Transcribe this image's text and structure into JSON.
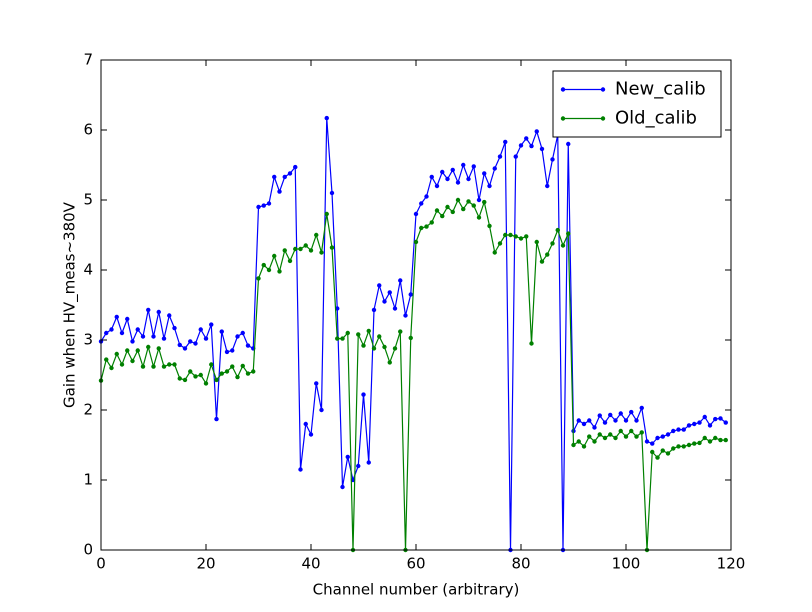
{
  "chart_data": {
    "type": "line",
    "xlabel": "Channel number (arbitrary)",
    "ylabel": "Gain when HV_meas~380V",
    "x": [
      0,
      1,
      2,
      3,
      4,
      5,
      6,
      7,
      8,
      9,
      10,
      11,
      12,
      13,
      14,
      15,
      16,
      17,
      18,
      19,
      20,
      21,
      22,
      23,
      24,
      25,
      26,
      27,
      28,
      29,
      30,
      31,
      32,
      33,
      34,
      35,
      36,
      37,
      38,
      39,
      40,
      41,
      42,
      43,
      44,
      45,
      46,
      47,
      48,
      49,
      50,
      51,
      52,
      53,
      54,
      55,
      56,
      57,
      58,
      59,
      60,
      61,
      62,
      63,
      64,
      65,
      66,
      67,
      68,
      69,
      70,
      71,
      72,
      73,
      74,
      75,
      76,
      77,
      78,
      79,
      80,
      81,
      82,
      83,
      84,
      85,
      86,
      87,
      88,
      89,
      90,
      91,
      92,
      93,
      94,
      95,
      96,
      97,
      98,
      99,
      100,
      101,
      102,
      103,
      104,
      105,
      106,
      107,
      108,
      109,
      110,
      111,
      112,
      113,
      114,
      115,
      116,
      117,
      118,
      119
    ],
    "series": [
      {
        "name": "New_calib",
        "color": "#0000ff",
        "values": [
          2.98,
          3.1,
          3.15,
          3.33,
          3.1,
          3.3,
          2.98,
          3.15,
          3.05,
          3.43,
          3.05,
          3.4,
          3.02,
          3.35,
          3.17,
          2.93,
          2.88,
          2.98,
          2.95,
          3.15,
          3.02,
          3.22,
          1.87,
          3.12,
          2.83,
          2.85,
          3.05,
          3.1,
          2.92,
          2.88,
          4.9,
          4.92,
          4.95,
          5.33,
          5.12,
          5.33,
          5.38,
          5.47,
          1.15,
          1.8,
          1.65,
          2.38,
          2.0,
          6.17,
          5.1,
          3.45,
          0.9,
          1.33,
          1.0,
          1.2,
          2.22,
          1.25,
          3.43,
          3.78,
          3.55,
          3.68,
          3.45,
          3.85,
          3.35,
          3.65,
          4.8,
          4.95,
          5.05,
          5.33,
          5.2,
          5.4,
          5.3,
          5.43,
          5.25,
          5.5,
          5.3,
          5.48,
          5.0,
          5.38,
          5.2,
          5.45,
          5.62,
          5.83,
          0,
          5.62,
          5.78,
          5.88,
          5.77,
          5.98,
          5.73,
          5.2,
          5.58,
          5.93,
          0,
          5.8,
          1.7,
          1.85,
          1.8,
          1.85,
          1.75,
          1.92,
          1.82,
          1.93,
          1.85,
          1.95,
          1.85,
          1.97,
          1.85,
          2.03,
          1.55,
          1.52,
          1.6,
          1.62,
          1.65,
          1.7,
          1.72,
          1.72,
          1.78,
          1.8,
          1.82,
          1.9,
          1.78,
          1.87,
          1.88,
          1.82
        ]
      },
      {
        "name": "Old_calib",
        "color": "#008000",
        "values": [
          2.42,
          2.72,
          2.6,
          2.8,
          2.65,
          2.85,
          2.7,
          2.85,
          2.62,
          2.9,
          2.62,
          2.88,
          2.62,
          2.65,
          2.65,
          2.45,
          2.43,
          2.55,
          2.48,
          2.5,
          2.38,
          2.65,
          2.43,
          2.52,
          2.55,
          2.62,
          2.47,
          2.63,
          2.52,
          2.55,
          3.88,
          4.07,
          4.0,
          4.2,
          3.98,
          4.28,
          4.13,
          4.3,
          4.3,
          4.35,
          4.28,
          4.5,
          4.25,
          4.8,
          4.32,
          3.02,
          3.02,
          3.1,
          0,
          3.08,
          2.92,
          3.13,
          2.88,
          3.05,
          2.9,
          2.68,
          2.88,
          3.12,
          0,
          3.03,
          4.4,
          4.6,
          4.62,
          4.68,
          4.85,
          4.77,
          4.9,
          4.83,
          5.0,
          4.87,
          4.98,
          4.92,
          4.75,
          4.97,
          4.63,
          4.25,
          4.38,
          4.5,
          4.5,
          4.48,
          4.45,
          4.48,
          2.95,
          4.4,
          4.12,
          4.22,
          4.38,
          4.57,
          4.35,
          4.52,
          1.5,
          1.55,
          1.48,
          1.62,
          1.55,
          1.65,
          1.6,
          1.65,
          1.6,
          1.7,
          1.62,
          1.7,
          1.62,
          1.68,
          0,
          1.4,
          1.32,
          1.42,
          1.38,
          1.45,
          1.48,
          1.48,
          1.5,
          1.52,
          1.53,
          1.6,
          1.55,
          1.6,
          1.57,
          1.57
        ]
      }
    ],
    "xlim": [
      0,
      120
    ],
    "xticks": [
      0,
      20,
      40,
      60,
      80,
      100,
      120
    ],
    "ylim": [
      0,
      7
    ],
    "yticks": [
      0,
      1,
      2,
      3,
      4,
      5,
      6,
      7
    ],
    "legend": "upper right"
  }
}
